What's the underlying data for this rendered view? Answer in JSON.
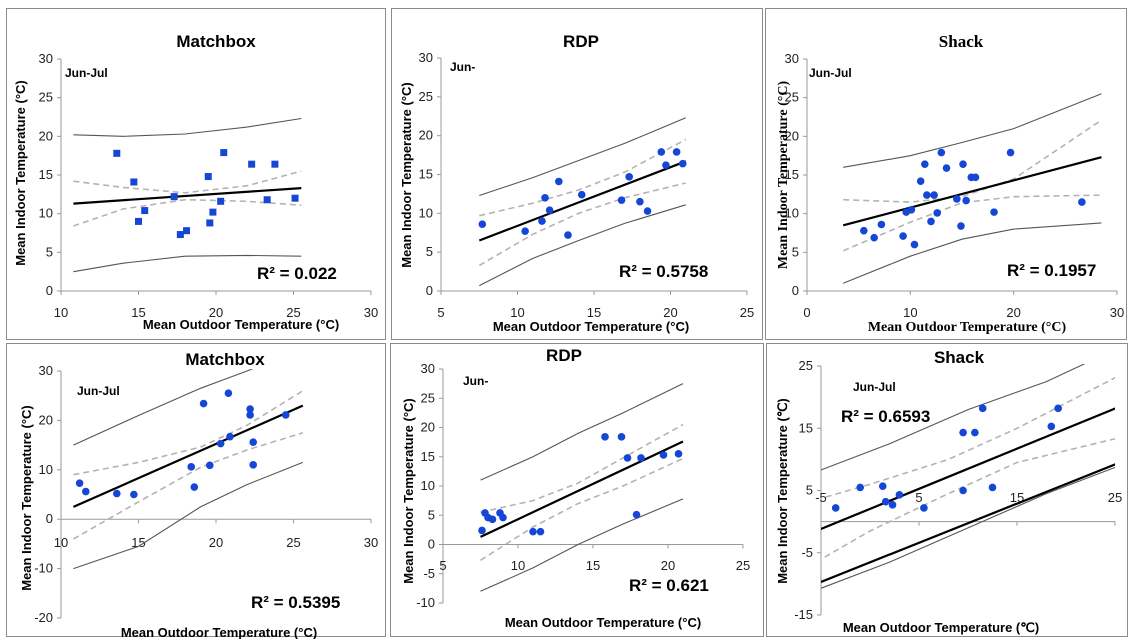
{
  "chart_data": [
    {
      "type": "scatter",
      "title": "Matchbox",
      "xlabel": "Mean Outdoor Temperature (°C)",
      "ylabel": "Mean Indoor Temperature (°C)",
      "period": "Jun-Jul",
      "r2_label": "R² = 0.022",
      "xlim": [
        10,
        30
      ],
      "ylim": [
        0,
        30
      ],
      "xticks": [
        "10",
        "15",
        "20",
        "25",
        "30"
      ],
      "yticks": [
        "0",
        "5",
        "10",
        "15",
        "20",
        "25",
        "30"
      ],
      "points": [
        [
          13.6,
          17.8
        ],
        [
          14.7,
          14.1
        ],
        [
          15.0,
          9.0
        ],
        [
          15.4,
          10.4
        ],
        [
          17.3,
          12.2
        ],
        [
          17.7,
          7.3
        ],
        [
          18.1,
          7.8
        ],
        [
          19.5,
          14.8
        ],
        [
          19.6,
          8.8
        ],
        [
          19.8,
          10.2
        ],
        [
          20.3,
          11.6
        ],
        [
          20.5,
          17.9
        ],
        [
          22.3,
          16.4
        ],
        [
          23.3,
          11.8
        ],
        [
          23.8,
          16.4
        ],
        [
          25.1,
          12.0
        ]
      ],
      "fit": [
        [
          10.8,
          11.3
        ],
        [
          25.5,
          13.3
        ]
      ],
      "ci": [
        [
          [
            10.8,
            14.2
          ],
          [
            14,
            13.4
          ],
          [
            18,
            12.7
          ],
          [
            22,
            13.6
          ],
          [
            25.5,
            15.5
          ]
        ],
        [
          [
            10.8,
            8.4
          ],
          [
            14,
            10.6
          ],
          [
            18,
            11.8
          ],
          [
            22,
            11.6
          ],
          [
            25.5,
            11.1
          ]
        ]
      ],
      "pi": [
        [
          [
            10.8,
            20.2
          ],
          [
            14,
            20.0
          ],
          [
            18,
            20.3
          ],
          [
            22,
            21.2
          ],
          [
            25.5,
            22.3
          ]
        ],
        [
          [
            10.8,
            2.5
          ],
          [
            14,
            3.6
          ],
          [
            18,
            4.5
          ],
          [
            22,
            4.6
          ],
          [
            25.5,
            4.5
          ]
        ]
      ]
    },
    {
      "type": "scatter",
      "title": "RDP",
      "xlabel": "Mean Outdoor Temperature (°C)",
      "ylabel": "Mean Indoor Temperature (°C)",
      "period": "Jun-",
      "r2_label": "R² = 0.5758",
      "xlim": [
        5,
        25
      ],
      "ylim": [
        0,
        30
      ],
      "xticks": [
        "5",
        "10",
        "15",
        "20",
        "25"
      ],
      "yticks": [
        "0",
        "5",
        "10",
        "15",
        "20",
        "25",
        "30"
      ],
      "points": [
        [
          7.7,
          8.6
        ],
        [
          10.5,
          7.7
        ],
        [
          11.6,
          9.0
        ],
        [
          11.8,
          12.0
        ],
        [
          12.1,
          10.4
        ],
        [
          12.7,
          14.1
        ],
        [
          13.3,
          7.2
        ],
        [
          14.2,
          12.4
        ],
        [
          16.8,
          11.7
        ],
        [
          17.3,
          14.7
        ],
        [
          18.0,
          11.5
        ],
        [
          18.5,
          10.3
        ],
        [
          19.4,
          17.9
        ],
        [
          19.7,
          16.2
        ],
        [
          20.4,
          17.9
        ],
        [
          20.8,
          16.4
        ]
      ],
      "fit": [
        [
          7.5,
          6.5
        ],
        [
          21.0,
          16.7
        ]
      ],
      "ci": [
        [
          [
            7.5,
            9.7
          ],
          [
            11,
            11.3
          ],
          [
            14,
            13.0
          ],
          [
            17,
            15.3
          ],
          [
            21,
            19.5
          ]
        ],
        [
          [
            7.5,
            3.3
          ],
          [
            11,
            7.3
          ],
          [
            14,
            10.0
          ],
          [
            17,
            12.0
          ],
          [
            21,
            13.9
          ]
        ]
      ],
      "pi": [
        [
          [
            7.5,
            12.3
          ],
          [
            11,
            14.6
          ],
          [
            14,
            16.8
          ],
          [
            17,
            19.0
          ],
          [
            21,
            22.3
          ]
        ],
        [
          [
            7.5,
            0.7
          ],
          [
            11,
            4.2
          ],
          [
            14,
            6.5
          ],
          [
            17,
            8.7
          ],
          [
            21,
            11.1
          ]
        ]
      ]
    },
    {
      "type": "scatter",
      "title": "Shack",
      "xlabel": "Mean Outdoor Temperature (°C)",
      "ylabel": "Mean Indoor Temperature (°C)",
      "period": "Jun-Jul",
      "r2_label": "R² = 0.1957",
      "xlim": [
        0,
        30
      ],
      "ylim": [
        0,
        30
      ],
      "xticks": [
        "0",
        "10",
        "20",
        "30"
      ],
      "yticks": [
        "0",
        "5",
        "10",
        "15",
        "20",
        "25",
        "30"
      ],
      "points": [
        [
          5.5,
          7.8
        ],
        [
          6.5,
          6.9
        ],
        [
          7.2,
          8.6
        ],
        [
          9.3,
          7.1
        ],
        [
          9.6,
          10.2
        ],
        [
          10.1,
          10.5
        ],
        [
          10.4,
          6.0
        ],
        [
          11.0,
          14.2
        ],
        [
          11.4,
          16.4
        ],
        [
          11.6,
          12.4
        ],
        [
          12.0,
          9.0
        ],
        [
          12.3,
          12.4
        ],
        [
          12.6,
          10.1
        ],
        [
          13.0,
          17.9
        ],
        [
          13.5,
          15.9
        ],
        [
          14.5,
          11.9
        ],
        [
          14.9,
          8.4
        ],
        [
          15.1,
          16.4
        ],
        [
          15.4,
          11.7
        ],
        [
          15.9,
          14.7
        ],
        [
          16.3,
          14.7
        ],
        [
          18.1,
          10.2
        ],
        [
          19.7,
          17.9
        ],
        [
          26.6,
          11.5
        ]
      ],
      "fit": [
        [
          3.5,
          8.5
        ],
        [
          28.5,
          17.3
        ]
      ],
      "ci": [
        [
          [
            3.5,
            11.8
          ],
          [
            10,
            11.5
          ],
          [
            15,
            12.2
          ],
          [
            20,
            14.5
          ],
          [
            28.5,
            22.1
          ]
        ],
        [
          [
            3.5,
            5.2
          ],
          [
            10,
            8.9
          ],
          [
            15,
            11.4
          ],
          [
            20,
            12.2
          ],
          [
            28.5,
            12.4
          ]
        ]
      ],
      "pi": [
        [
          [
            3.5,
            16.0
          ],
          [
            10,
            17.5
          ],
          [
            15,
            19.2
          ],
          [
            20,
            21.0
          ],
          [
            28.5,
            25.5
          ]
        ],
        [
          [
            3.5,
            1.0
          ],
          [
            10,
            4.5
          ],
          [
            15,
            6.7
          ],
          [
            20,
            8.0
          ],
          [
            28.5,
            8.8
          ]
        ]
      ]
    },
    {
      "type": "scatter",
      "title": "Matchbox",
      "xlabel": "Mean Outdoor Temperature (°C)",
      "ylabel": "Mean Indoor Temperature (°C)",
      "period": "Jun-Jul",
      "r2_label": "R² = 0.5395",
      "xlim": [
        10,
        30
      ],
      "ylim": [
        -20,
        30
      ],
      "xticks": [
        "10",
        "15",
        "20",
        "25",
        "30"
      ],
      "yticks": [
        "-20",
        "-10",
        "0",
        "10",
        "20",
        "30"
      ],
      "points": [
        [
          11.2,
          7.3
        ],
        [
          11.6,
          5.6
        ],
        [
          13.6,
          5.2
        ],
        [
          14.7,
          5.0
        ],
        [
          18.4,
          10.6
        ],
        [
          18.6,
          6.5
        ],
        [
          19.2,
          23.4
        ],
        [
          19.6,
          10.9
        ],
        [
          20.3,
          15.3
        ],
        [
          20.8,
          25.5
        ],
        [
          20.9,
          16.7
        ],
        [
          22.2,
          22.3
        ],
        [
          22.2,
          21.1
        ],
        [
          22.4,
          15.6
        ],
        [
          22.4,
          11.0
        ],
        [
          24.5,
          21.1
        ]
      ],
      "fit": [
        [
          10.8,
          2.5
        ],
        [
          25.6,
          23.0
        ]
      ],
      "ci": [
        [
          [
            10.8,
            9.0
          ],
          [
            15,
            11.5
          ],
          [
            19,
            14.6
          ],
          [
            22,
            19.0
          ],
          [
            25.6,
            26.0
          ]
        ],
        [
          [
            10.8,
            -4.0
          ],
          [
            15,
            3.5
          ],
          [
            19,
            10.5
          ],
          [
            22,
            14.0
          ],
          [
            25.6,
            17.5
          ]
        ]
      ],
      "pi": [
        [
          [
            10.8,
            15.0
          ],
          [
            15,
            21.0
          ],
          [
            19,
            26.5
          ],
          [
            22,
            30.0
          ],
          [
            25.6,
            34.5
          ]
        ],
        [
          [
            10.8,
            -10.0
          ],
          [
            15,
            -5.5
          ],
          [
            19,
            2.5
          ],
          [
            22,
            7.0
          ],
          [
            25.6,
            11.5
          ]
        ]
      ]
    },
    {
      "type": "scatter",
      "title": "RDP",
      "xlabel": "Mean Outdoor Temperature (°C)",
      "ylabel": "Mean Indoor Temperature (°C)",
      "period": "Jun-",
      "r2_label": "R² = 0.621",
      "xlim": [
        5,
        25
      ],
      "ylim": [
        -10,
        30
      ],
      "xticks": [
        "5",
        "10",
        "15",
        "20",
        "25"
      ],
      "yticks": [
        "-10",
        "-5",
        "0",
        "5",
        "10",
        "15",
        "20",
        "25",
        "30"
      ],
      "points": [
        [
          7.6,
          2.4
        ],
        [
          7.8,
          5.4
        ],
        [
          8.0,
          4.6
        ],
        [
          8.3,
          4.3
        ],
        [
          8.8,
          5.4
        ],
        [
          9.0,
          4.6
        ],
        [
          11.0,
          2.2
        ],
        [
          11.5,
          2.2
        ],
        [
          15.8,
          18.4
        ],
        [
          16.9,
          18.4
        ],
        [
          17.3,
          14.8
        ],
        [
          17.9,
          5.1
        ],
        [
          18.2,
          14.8
        ],
        [
          19.7,
          15.3
        ],
        [
          20.7,
          15.5
        ]
      ],
      "fit": [
        [
          7.5,
          1.3
        ],
        [
          21.0,
          17.6
        ]
      ],
      "ci": [
        [
          [
            7.5,
            5.5
          ],
          [
            11,
            7.5
          ],
          [
            14,
            10.5
          ],
          [
            17,
            14.8
          ],
          [
            21,
            20.5
          ]
        ],
        [
          [
            7.5,
            -2.7
          ],
          [
            11,
            3.0
          ],
          [
            14,
            7.0
          ],
          [
            17,
            10.0
          ],
          [
            21,
            14.7
          ]
        ]
      ],
      "pi": [
        [
          [
            7.5,
            11.0
          ],
          [
            11,
            15.0
          ],
          [
            14,
            19.0
          ],
          [
            17,
            22.5
          ],
          [
            21,
            27.5
          ]
        ],
        [
          [
            7.5,
            -8.0
          ],
          [
            11,
            -4.0
          ],
          [
            14,
            0.0
          ],
          [
            17,
            3.5
          ],
          [
            21,
            7.8
          ]
        ]
      ]
    },
    {
      "type": "scatter",
      "title": "Shack",
      "xlabel": "Mean Outdoor Temperature (℃)",
      "ylabel": "Mean Indoor Temperature (℃)",
      "period": "Jun-Jul",
      "r2_label": "R² = 0.6593",
      "xlim": [
        -5,
        25
      ],
      "ylim": [
        -15,
        25
      ],
      "xticks": [
        "-5",
        "5",
        "15",
        "25"
      ],
      "yticks": [
        "-15",
        "-5",
        "5",
        "15",
        "25"
      ],
      "points": [
        [
          -3.5,
          2.2
        ],
        [
          -1.0,
          5.5
        ],
        [
          1.3,
          5.7
        ],
        [
          1.6,
          3.2
        ],
        [
          2.3,
          2.7
        ],
        [
          3.0,
          4.3
        ],
        [
          5.5,
          2.2
        ],
        [
          9.5,
          14.3
        ],
        [
          9.5,
          5.0
        ],
        [
          10.7,
          14.3
        ],
        [
          11.5,
          18.2
        ],
        [
          12.5,
          5.5
        ],
        [
          18.5,
          15.3
        ],
        [
          19.2,
          18.2
        ]
      ],
      "fit": [
        [
          -5.5,
          -1.5
        ],
        [
          25.5,
          18.5
        ]
      ],
      "ci": [
        [
          [
            -5.5,
            3.5
          ],
          [
            0,
            6.0
          ],
          [
            8,
            10.0
          ],
          [
            15,
            15.0
          ],
          [
            25.5,
            23.5
          ]
        ],
        [
          [
            -5.5,
            -6.5
          ],
          [
            0,
            -1.5
          ],
          [
            8,
            4.5
          ],
          [
            15,
            9.5
          ],
          [
            25.5,
            13.5
          ]
        ]
      ],
      "pi": [
        [
          [
            -5.5,
            8.0
          ],
          [
            2,
            12.5
          ],
          [
            10,
            18.0
          ],
          [
            18,
            22.5
          ],
          [
            25.5,
            28.0
          ]
        ],
        [
          [
            -5.5,
            -11.0
          ],
          [
            2,
            -6.5
          ],
          [
            10,
            -1.0
          ],
          [
            18,
            4.5
          ],
          [
            25.5,
            9.0
          ]
        ]
      ],
      "extra_line": [
        [
          -5.5,
          -10.0
        ],
        [
          25.5,
          9.5
        ]
      ]
    }
  ]
}
